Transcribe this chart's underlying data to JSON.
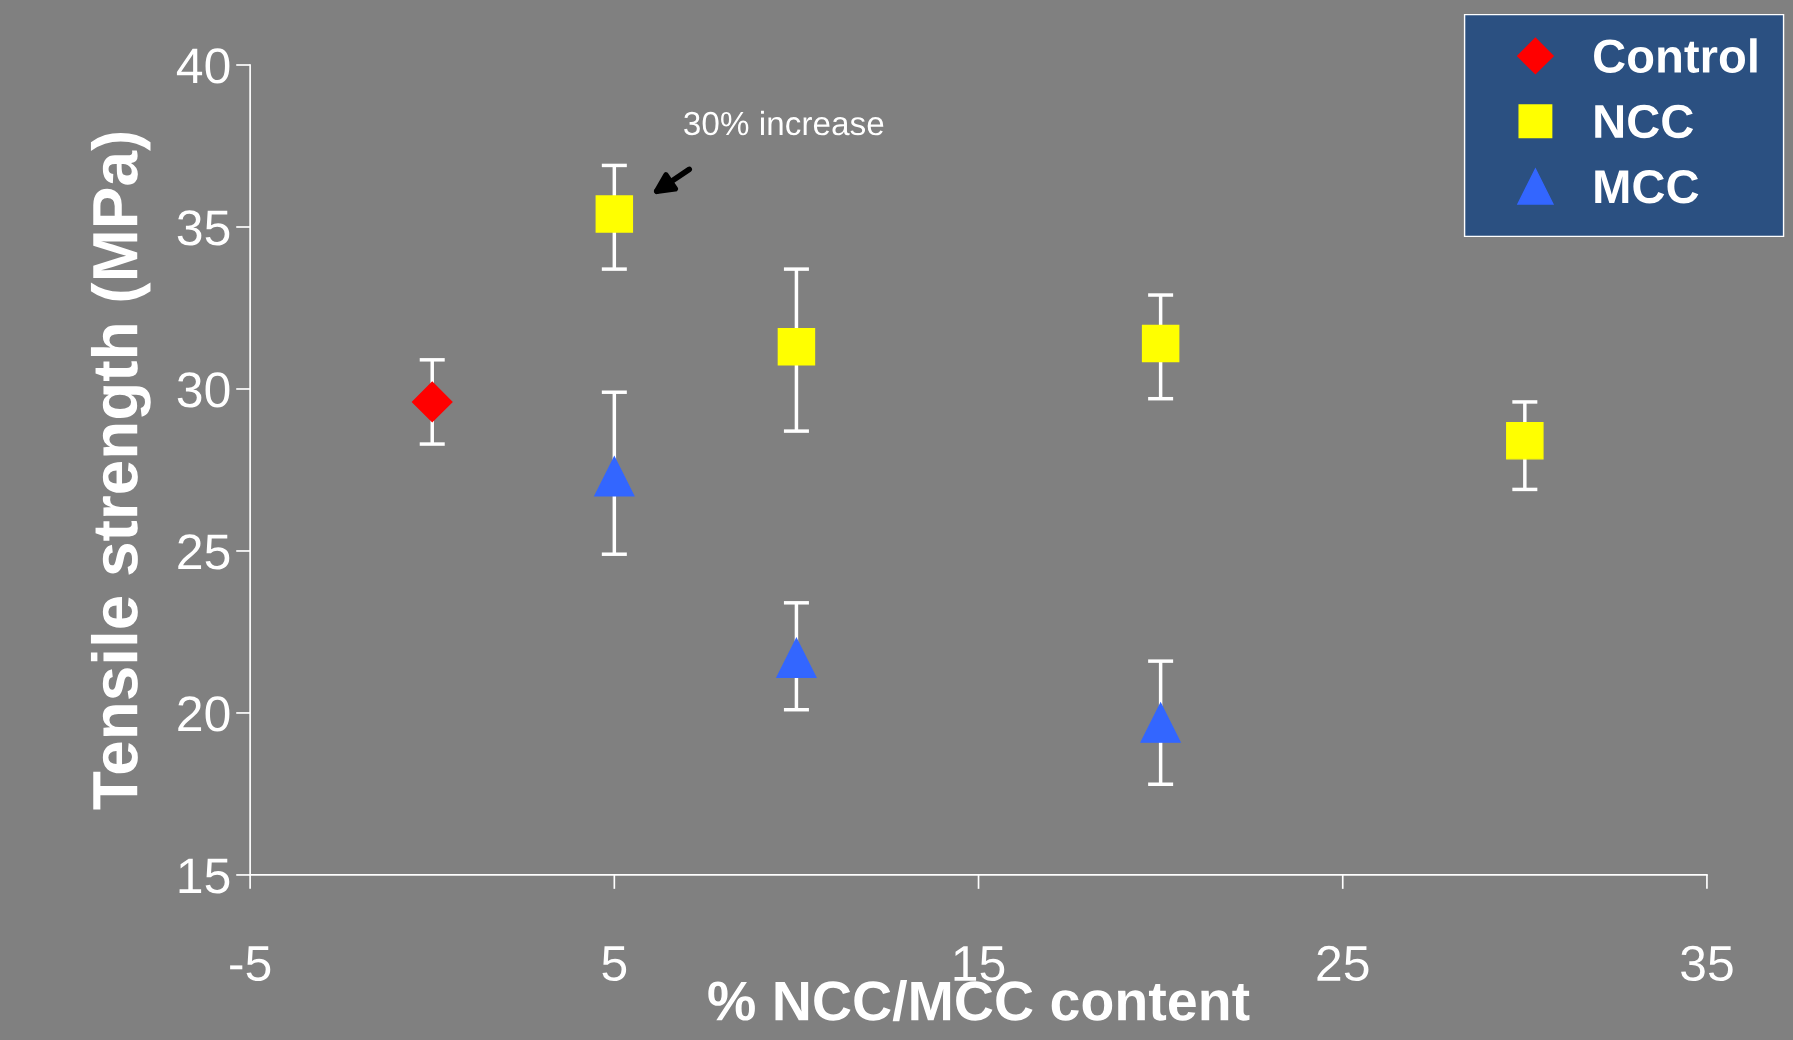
{
  "chart_data": {
    "type": "scatter",
    "xlabel": "% NCC/MCC content",
    "ylabel": "Tensile strength (MPa)",
    "xlim": [
      -5,
      35
    ],
    "xticks": [
      -5,
      5,
      15,
      25,
      35
    ],
    "ylim": [
      15,
      40
    ],
    "yticks": [
      15,
      20,
      25,
      30,
      35,
      40
    ],
    "grid": false,
    "legend": "top right",
    "series": [
      {
        "name": "Control",
        "color": "#ff0000",
        "marker": "diamond",
        "x": [
          0
        ],
        "values": [
          29.6
        ],
        "errors": [
          [
            28.3,
            30.9
          ]
        ]
      },
      {
        "name": "NCC",
        "color": "#ffff00",
        "marker": "square",
        "x": [
          5,
          10,
          20,
          30
        ],
        "values": [
          35.4,
          31.3,
          31.4,
          28.4
        ],
        "errors": [
          [
            33.7,
            36.9
          ],
          [
            28.7,
            33.7
          ],
          [
            29.7,
            32.9
          ],
          [
            26.9,
            29.6
          ]
        ]
      },
      {
        "name": "MCC",
        "color": "#3366ff",
        "marker": "triangle",
        "x": [
          5,
          10,
          20
        ],
        "values": [
          27.3,
          21.7,
          19.7
        ],
        "errors": [
          [
            24.9,
            29.9
          ],
          [
            20.1,
            23.4
          ],
          [
            17.8,
            21.6
          ]
        ]
      }
    ],
    "annotations": [
      "30% increase"
    ]
  }
}
